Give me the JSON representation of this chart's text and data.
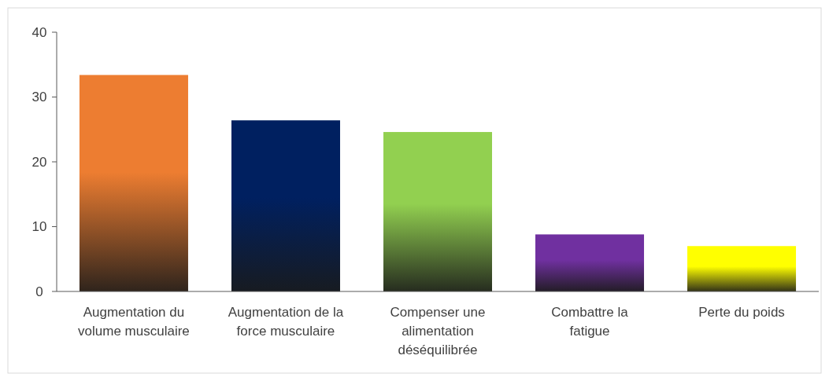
{
  "chart_data": {
    "type": "bar",
    "categories": [
      "Augmentation du volume musculaire",
      "Augmentation de la force musculaire",
      "Compenser une alimentation déséquilibrée",
      "Combattre la fatigue",
      "Perte du poids"
    ],
    "values": [
      33.4,
      26.4,
      24.6,
      8.8,
      7
    ],
    "colors": [
      "#ed7d31",
      "#002060",
      "#92d050",
      "#7030a0",
      "#ffff00"
    ],
    "ylim": [
      0,
      40
    ],
    "yticks": [
      0,
      10,
      20,
      30,
      40
    ],
    "grid": false
  }
}
